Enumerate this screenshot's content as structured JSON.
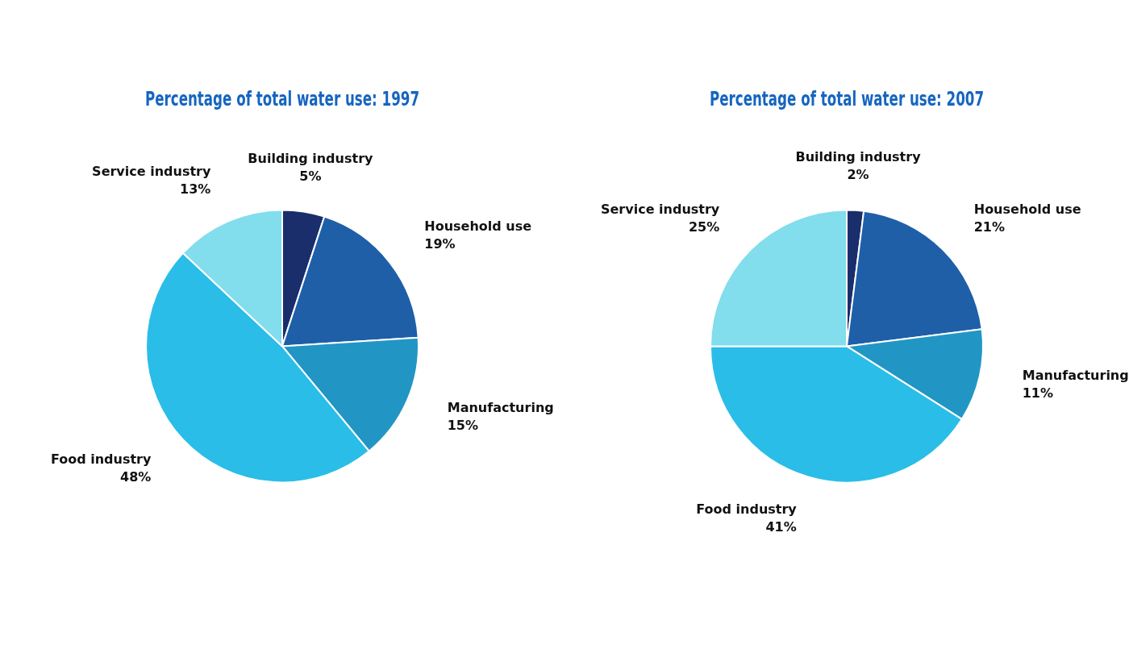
{
  "chart_data": [
    {
      "type": "pie",
      "title": "Percentage of total water use: 1997",
      "categories": [
        "Building industry",
        "Household use",
        "Manufacturing",
        "Food industry",
        "Service industry"
      ],
      "values": [
        5,
        19,
        15,
        48,
        13
      ],
      "colors": [
        "#1a2e6b",
        "#1e5fa8",
        "#2196c4",
        "#2abde8",
        "#82dded"
      ],
      "data_labels": true,
      "value_labels": [
        "5%",
        "19%",
        "15%",
        "48%",
        "13%"
      ]
    },
    {
      "type": "pie",
      "title": "Percentage of total water use: 2007",
      "categories": [
        "Building industry",
        "Household use",
        "Manufacturing",
        "Food industry",
        "Service industry"
      ],
      "values": [
        2,
        21,
        11,
        41,
        25
      ],
      "colors": [
        "#1a2e6b",
        "#1e5fa8",
        "#2196c4",
        "#2abde8",
        "#82dded"
      ],
      "data_labels": true,
      "value_labels": [
        "2%",
        "21%",
        "11%",
        "41%",
        "25%"
      ]
    }
  ]
}
